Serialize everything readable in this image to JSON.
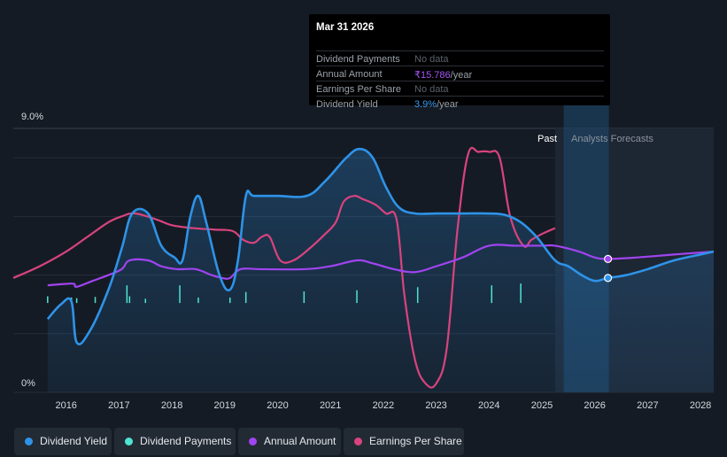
{
  "tooltip": {
    "date": "Mar 31 2026",
    "rows": [
      {
        "label": "Dividend Payments",
        "value": "No data"
      },
      {
        "label": "Annual Amount",
        "value": "₹15.786",
        "unit": "/year"
      },
      {
        "label": "Earnings Per Share",
        "value": "No data"
      },
      {
        "label": "Dividend Yield",
        "value": "3.9%",
        "unit": "/year"
      }
    ]
  },
  "labels": {
    "past": "Past",
    "forecast": "Analysts Forecasts"
  },
  "legend": [
    {
      "label": "Dividend Yield",
      "color": "#2e93e8"
    },
    {
      "label": "Dividend Payments",
      "color": "#4fe3d3"
    },
    {
      "label": "Annual Amount",
      "color": "#a044f0"
    },
    {
      "label": "Earnings Per Share",
      "color": "#d9437e"
    }
  ],
  "chart_data": {
    "type": "line",
    "y_axis": {
      "min": 0,
      "max": 9.0,
      "tick_labels": [
        "9.0%",
        "0%"
      ],
      "unit": "%"
    },
    "x_axis": {
      "tick_labels": [
        "2016",
        "2017",
        "2018",
        "2019",
        "2020",
        "2021",
        "2022",
        "2023",
        "2024",
        "2025",
        "2026",
        "2027",
        "2028"
      ],
      "range": [
        2015.0,
        2028.25
      ]
    },
    "past_until": 2025.25,
    "highlight": {
      "x": 2026.25
    },
    "series": [
      {
        "name": "Dividend Yield",
        "color": "#2e93e8",
        "points": [
          [
            2015.65,
            2.5
          ],
          [
            2015.9,
            3.0
          ],
          [
            2016.1,
            3.1
          ],
          [
            2016.2,
            1.7
          ],
          [
            2016.45,
            2.1
          ],
          [
            2016.8,
            3.5
          ],
          [
            2017.05,
            4.9
          ],
          [
            2017.25,
            6.1
          ],
          [
            2017.55,
            6.1
          ],
          [
            2017.8,
            5.0
          ],
          [
            2018.05,
            4.6
          ],
          [
            2018.2,
            4.5
          ],
          [
            2018.35,
            6.0
          ],
          [
            2018.5,
            6.7
          ],
          [
            2018.65,
            5.8
          ],
          [
            2018.9,
            4.0
          ],
          [
            2019.1,
            3.5
          ],
          [
            2019.25,
            4.5
          ],
          [
            2019.4,
            6.7
          ],
          [
            2019.55,
            6.7
          ],
          [
            2020.0,
            6.7
          ],
          [
            2020.55,
            6.7
          ],
          [
            2020.9,
            7.2
          ],
          [
            2021.3,
            8.0
          ],
          [
            2021.55,
            8.3
          ],
          [
            2021.8,
            8.0
          ],
          [
            2022.05,
            7.0
          ],
          [
            2022.3,
            6.3
          ],
          [
            2022.6,
            6.1
          ],
          [
            2023.0,
            6.1
          ],
          [
            2023.5,
            6.1
          ],
          [
            2024.0,
            6.1
          ],
          [
            2024.3,
            6.05
          ],
          [
            2024.6,
            5.8
          ],
          [
            2024.9,
            5.3
          ],
          [
            2025.25,
            4.5
          ],
          [
            2025.5,
            4.3
          ],
          [
            2025.75,
            4.0
          ],
          [
            2026.0,
            3.8
          ],
          [
            2026.25,
            3.9
          ],
          [
            2026.6,
            4.0
          ],
          [
            2027.0,
            4.2
          ],
          [
            2027.5,
            4.5
          ],
          [
            2028.0,
            4.7
          ],
          [
            2028.25,
            4.8
          ]
        ]
      },
      {
        "name": "Annual Amount",
        "color": "#a044f0",
        "points": [
          [
            2015.65,
            3.65
          ],
          [
            2016.0,
            3.7
          ],
          [
            2016.15,
            3.7
          ],
          [
            2016.2,
            3.6
          ],
          [
            2016.5,
            3.8
          ],
          [
            2016.8,
            4.0
          ],
          [
            2017.05,
            4.2
          ],
          [
            2017.2,
            4.5
          ],
          [
            2017.55,
            4.5
          ],
          [
            2017.8,
            4.3
          ],
          [
            2018.1,
            4.2
          ],
          [
            2018.45,
            4.2
          ],
          [
            2018.75,
            4.0
          ],
          [
            2018.95,
            3.9
          ],
          [
            2019.1,
            3.9
          ],
          [
            2019.3,
            4.2
          ],
          [
            2019.7,
            4.2
          ],
          [
            2020.5,
            4.2
          ],
          [
            2021.0,
            4.3
          ],
          [
            2021.5,
            4.5
          ],
          [
            2021.8,
            4.4
          ],
          [
            2022.2,
            4.2
          ],
          [
            2022.6,
            4.1
          ],
          [
            2023.0,
            4.3
          ],
          [
            2023.5,
            4.6
          ],
          [
            2024.0,
            5.0
          ],
          [
            2024.5,
            5.0
          ],
          [
            2025.0,
            5.0
          ],
          [
            2025.25,
            5.0
          ],
          [
            2025.7,
            4.8
          ],
          [
            2026.0,
            4.6
          ],
          [
            2026.25,
            4.55
          ],
          [
            2026.8,
            4.6
          ],
          [
            2027.5,
            4.7
          ],
          [
            2028.25,
            4.8
          ]
        ]
      },
      {
        "name": "Earnings Per Share",
        "color": "#d9437e",
        "points": [
          [
            2015.0,
            3.9
          ],
          [
            2015.5,
            4.3
          ],
          [
            2016.0,
            4.8
          ],
          [
            2016.4,
            5.3
          ],
          [
            2016.8,
            5.8
          ],
          [
            2017.05,
            6.0
          ],
          [
            2017.3,
            6.1
          ],
          [
            2017.7,
            5.9
          ],
          [
            2018.0,
            5.7
          ],
          [
            2018.4,
            5.6
          ],
          [
            2018.8,
            5.55
          ],
          [
            2019.15,
            5.5
          ],
          [
            2019.35,
            5.2
          ],
          [
            2019.55,
            5.1
          ],
          [
            2019.7,
            5.3
          ],
          [
            2019.85,
            5.3
          ],
          [
            2020.05,
            4.5
          ],
          [
            2020.3,
            4.5
          ],
          [
            2020.6,
            4.9
          ],
          [
            2020.9,
            5.4
          ],
          [
            2021.1,
            5.8
          ],
          [
            2021.25,
            6.5
          ],
          [
            2021.45,
            6.7
          ],
          [
            2021.6,
            6.6
          ],
          [
            2021.85,
            6.4
          ],
          [
            2022.05,
            6.1
          ],
          [
            2022.25,
            5.9
          ],
          [
            2022.4,
            3.3
          ],
          [
            2022.6,
            1.1
          ],
          [
            2022.8,
            0.3
          ],
          [
            2023.0,
            0.3
          ],
          [
            2023.2,
            1.5
          ],
          [
            2023.4,
            5.5
          ],
          [
            2023.6,
            8.1
          ],
          [
            2023.8,
            8.2
          ],
          [
            2024.0,
            8.2
          ],
          [
            2024.2,
            8.0
          ],
          [
            2024.4,
            6.0
          ],
          [
            2024.65,
            5.0
          ],
          [
            2024.8,
            5.2
          ],
          [
            2025.0,
            5.4
          ],
          [
            2025.25,
            5.6
          ]
        ]
      },
      {
        "name": "Dividend Payments",
        "color": "#4fe3d3",
        "points": [
          [
            2015.65,
            0.55
          ],
          [
            2016.1,
            0.45
          ],
          [
            2016.2,
            0.4
          ],
          [
            2016.55,
            0.5
          ],
          [
            2017.15,
            1.45
          ],
          [
            2017.2,
            0.55
          ],
          [
            2017.5,
            0.35
          ],
          [
            2018.15,
            1.45
          ],
          [
            2018.5,
            0.45
          ],
          [
            2019.1,
            0.45
          ],
          [
            2019.4,
            0.9
          ],
          [
            2020.5,
            0.95
          ],
          [
            2021.5,
            1.05
          ],
          [
            2022.65,
            1.3
          ],
          [
            2024.05,
            1.45
          ],
          [
            2024.6,
            1.6
          ]
        ]
      }
    ]
  }
}
